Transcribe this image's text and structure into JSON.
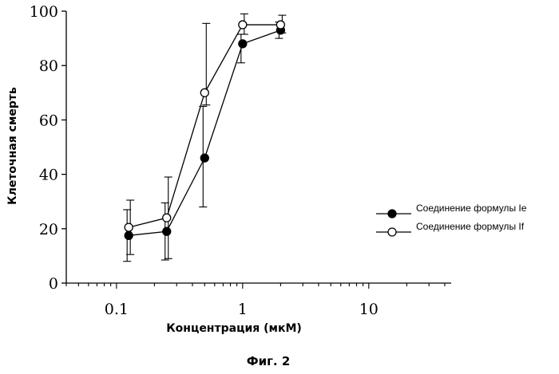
{
  "chart_data": {
    "type": "line",
    "title": "",
    "xlabel": "Концентрация (мкМ)",
    "ylabel": "Клеточная смерть",
    "x_scale": "log",
    "xlim": [
      0.04,
      45
    ],
    "ylim": [
      0,
      100
    ],
    "x_ticks": [
      0.1,
      1,
      10
    ],
    "x_tick_labels": [
      "0.1",
      "1",
      "10"
    ],
    "y_ticks": [
      0,
      20,
      40,
      60,
      80,
      100
    ],
    "y_tick_labels": [
      "0",
      "20",
      "40",
      "60",
      "80",
      "100"
    ],
    "grid": false,
    "legend_position": "right",
    "series": [
      {
        "name": "Соединение формулы Ie",
        "marker": "filled-circle",
        "color": "#000000",
        "x": [
          0.125,
          0.25,
          0.5,
          1,
          2
        ],
        "y": [
          17.5,
          19,
          46,
          88,
          93
        ],
        "err_low": [
          9.5,
          10.5,
          18,
          7,
          3
        ],
        "err_high": [
          9.5,
          10.5,
          19,
          3.5,
          3
        ]
      },
      {
        "name": "Соединение формулы If",
        "marker": "open-circle",
        "color": "#000000",
        "x": [
          0.125,
          0.25,
          0.5,
          1,
          2
        ],
        "y": [
          20.5,
          24,
          70,
          95,
          95
        ],
        "err_low": [
          10,
          15,
          4.5,
          3.5,
          3
        ],
        "err_high": [
          10,
          15,
          25.5,
          4,
          3.5
        ]
      }
    ]
  },
  "caption": "Фиг. 2"
}
